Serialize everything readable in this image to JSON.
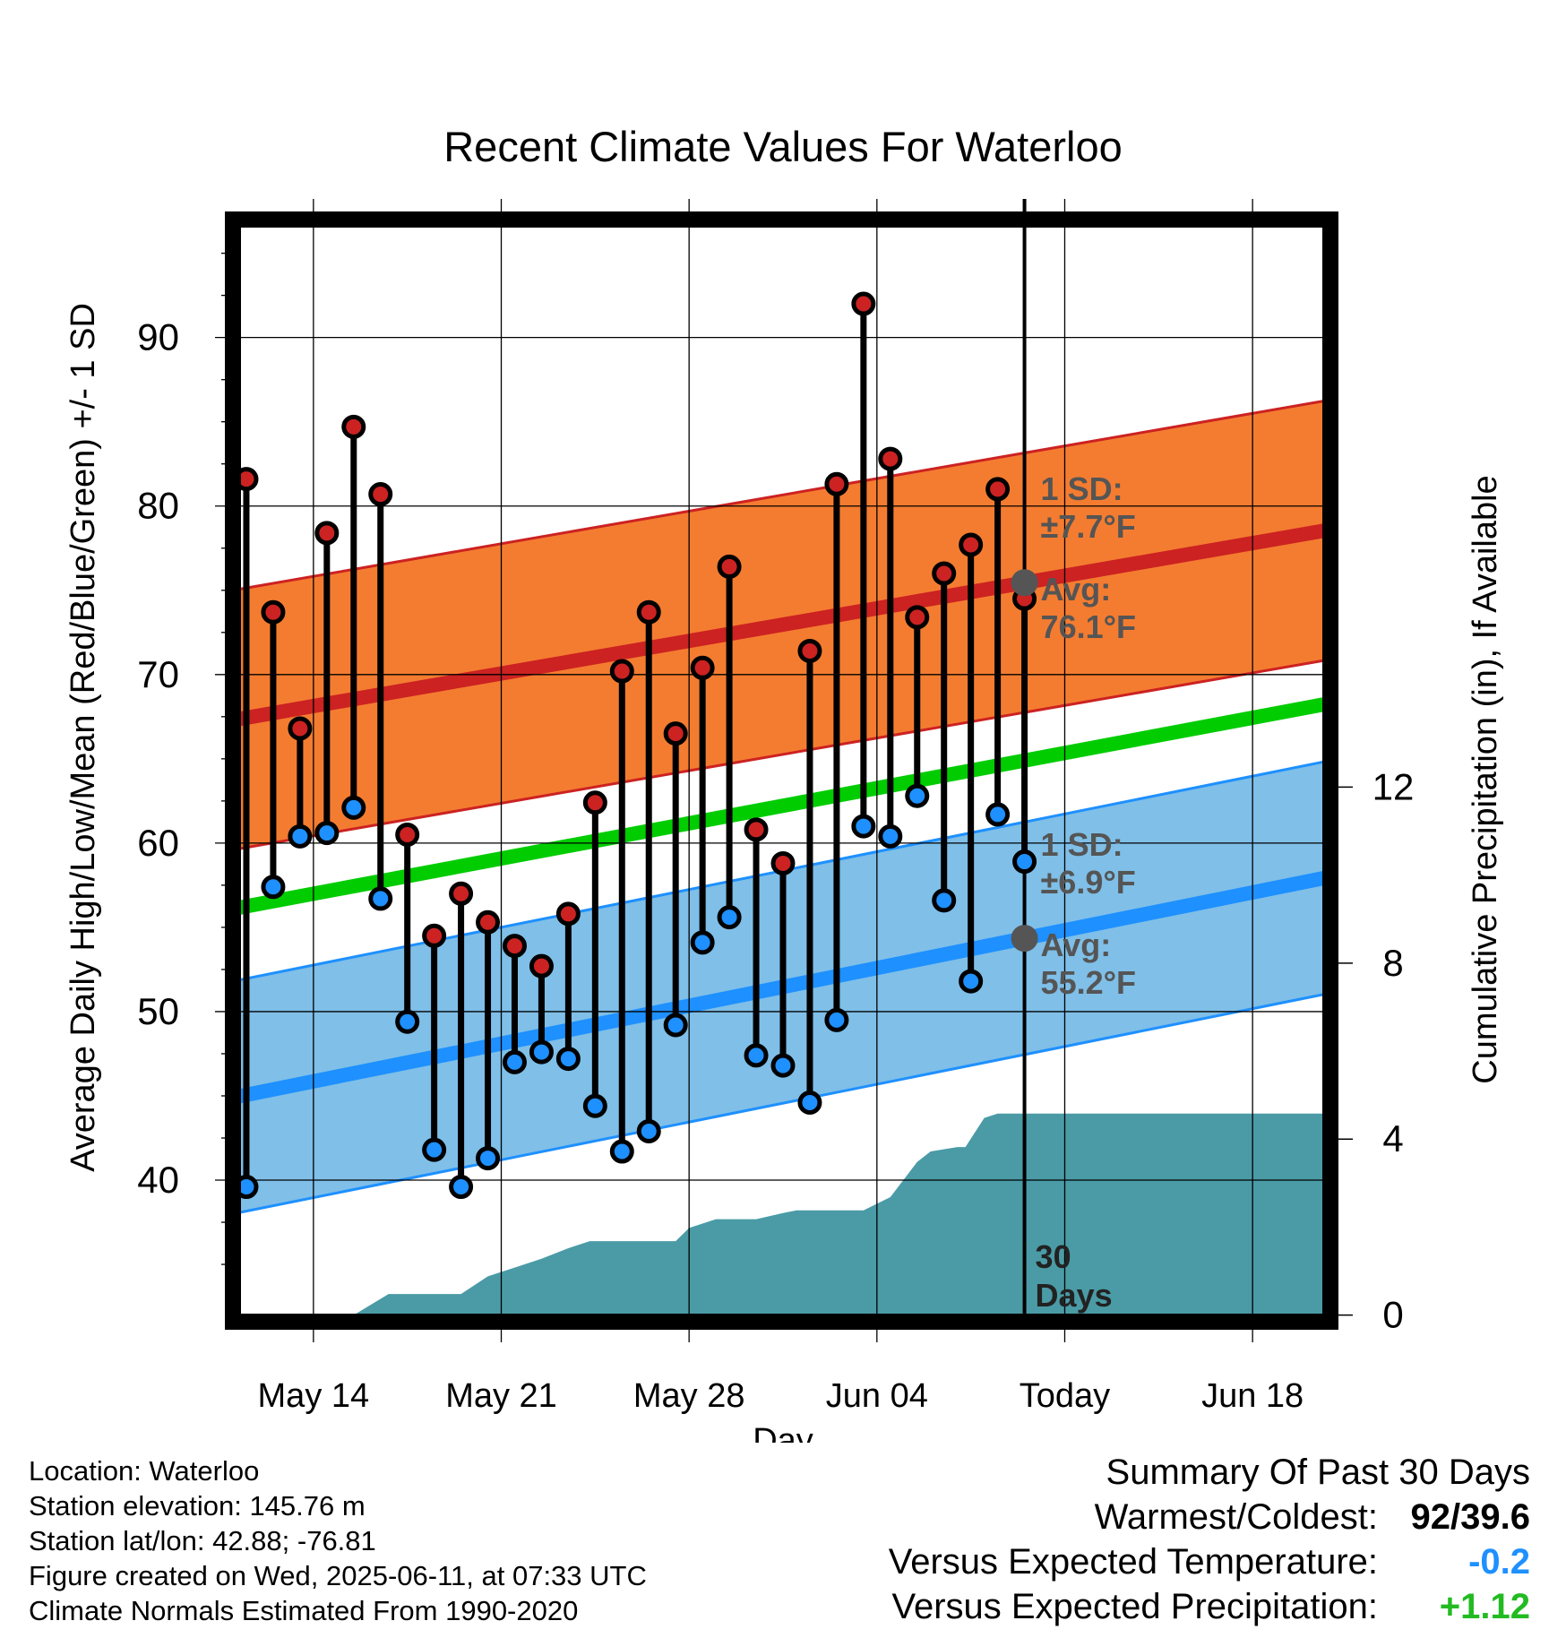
{
  "chart_data": {
    "type": "line",
    "title": "Recent Climate Values For Waterloo",
    "xlabel": "Day",
    "ylabel": "Average Daily High/Low/Mean (Red/Blue/Green) +/- 1 SD",
    "ylabel_right": "Cumulative Precipitation (in), If Available",
    "x_ticks": [
      "May 14",
      "May 21",
      "May 28",
      "Jun 04",
      "Today",
      "Jun 18"
    ],
    "y_ticks": [
      40,
      50,
      60,
      70,
      80,
      90
    ],
    "y2_ticks": [
      0,
      4,
      8,
      12
    ],
    "ylim": [
      31.6,
      97.0
    ],
    "y2lim": [
      -0.15,
      24.9
    ],
    "grid": true,
    "today_day": 30,
    "x_days_range": [
      0.5,
      41.4
    ],
    "daily": {
      "day": [
        1,
        2,
        3,
        4,
        5,
        6,
        7,
        8,
        9,
        10,
        11,
        12,
        13,
        14,
        15,
        16,
        17,
        18,
        19,
        20,
        21,
        22,
        23,
        24,
        25,
        26,
        27,
        28,
        29,
        30
      ],
      "high": [
        81.6,
        73.7,
        66.8,
        78.4,
        84.7,
        80.7,
        60.5,
        54.5,
        57.0,
        55.3,
        53.9,
        52.7,
        55.8,
        62.4,
        70.2,
        73.7,
        66.5,
        70.4,
        76.4,
        60.8,
        58.8,
        71.4,
        81.3,
        92.0,
        82.8,
        73.4,
        76.0,
        77.7,
        81.0,
        74.5
      ],
      "low": [
        39.6,
        57.4,
        60.4,
        60.6,
        62.1,
        56.7,
        49.4,
        41.8,
        39.6,
        41.3,
        47.0,
        47.6,
        47.2,
        44.4,
        41.7,
        42.9,
        49.2,
        54.1,
        55.6,
        47.4,
        46.8,
        44.6,
        49.5,
        61.0,
        60.4,
        62.8,
        56.6,
        51.8,
        61.7,
        58.9
      ]
    },
    "normals": {
      "day": [
        0.5,
        41.4
      ],
      "high_avg": [
        67.3,
        78.6
      ],
      "low_avg": [
        44.9,
        58.0
      ],
      "mean_avg": [
        56.1,
        68.3
      ],
      "high_sd": 7.7,
      "low_sd": 6.9
    },
    "precip_cumulative": {
      "day": [
        0.5,
        5.0,
        6.3,
        9.0,
        10.0,
        11.0,
        12.0,
        13.0,
        13.8,
        17.0,
        17.5,
        18.5,
        20.0,
        21.0,
        21.5,
        24.0,
        25.0,
        26.0,
        26.5,
        27.5,
        27.8,
        28.5,
        29.0,
        29.5,
        30.0,
        41.4
      ],
      "inches": [
        0,
        0,
        0.48,
        0.48,
        0.88,
        1.08,
        1.28,
        1.52,
        1.68,
        1.68,
        1.98,
        2.18,
        2.18,
        2.32,
        2.38,
        2.38,
        2.68,
        3.48,
        3.72,
        3.82,
        3.82,
        4.48,
        4.58,
        4.58,
        4.58,
        4.58
      ]
    },
    "annotations": {
      "high_sd_label": "1 SD:",
      "high_sd_value": "±7.7°F",
      "high_avg_label": "Avg:",
      "high_avg_value": "76.1°F",
      "low_sd_label": "1 SD:",
      "low_sd_value": "±6.9°F",
      "low_avg_label": "Avg:",
      "low_avg_value": "55.2°F",
      "period_number": "30",
      "period_unit": "Days"
    },
    "colors": {
      "high": "#cc2222",
      "high_band": "#f47c30",
      "low": "#1e90ff",
      "low_band": "#7fbfe8",
      "mean": "#00cc00",
      "precip": "#4a9ba6",
      "marker_edge": "#000000",
      "today_marker": "#555555"
    }
  },
  "info": {
    "location": "Location: Waterloo",
    "elevation": "Station elevation: 145.76 m",
    "latlon": "Station lat/lon: 42.88; -76.81",
    "created": "Figure created on Wed, 2025-06-11, at 07:33 UTC",
    "normals": "Climate Normals Estimated From 1990-2020"
  },
  "summary": {
    "title": "Summary Of Past 30 Days",
    "warmest_label": "Warmest/Coldest:",
    "warmest_value": "92/39.6",
    "temp_label": "Versus Expected Temperature:",
    "temp_value": "-0.2",
    "temp_color": "#1e90ff",
    "precip_label": "Versus Expected Precipitation:",
    "precip_value": "+1.12",
    "precip_color": "#22bb22"
  }
}
